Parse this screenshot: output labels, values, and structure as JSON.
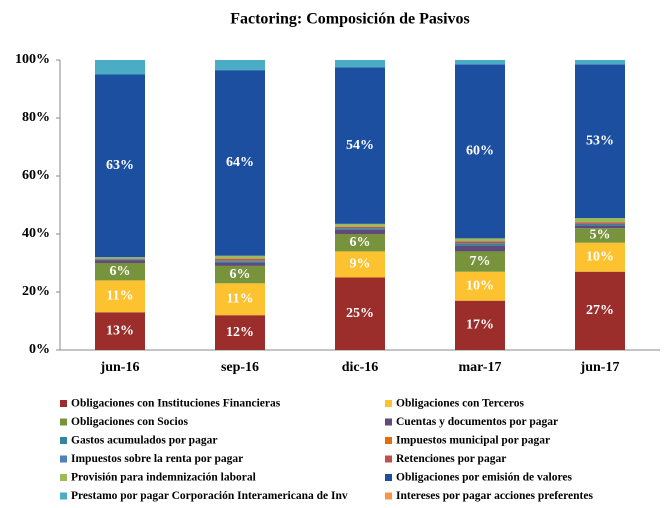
{
  "chart_data": {
    "type": "stacked_bar",
    "title": "Factoring: Composición de Pasivos",
    "categories": [
      "jun-16",
      "sep-16",
      "dic-16",
      "mar-17",
      "jun-17"
    ],
    "ylim": [
      0,
      100
    ],
    "yticks": [
      {
        "value": 0,
        "label": "0%"
      },
      {
        "value": 20,
        "label": "20%"
      },
      {
        "value": 40,
        "label": "40%"
      },
      {
        "value": 60,
        "label": "60%"
      },
      {
        "value": 80,
        "label": "80%"
      },
      {
        "value": 100,
        "label": "100%"
      }
    ],
    "grid": false,
    "legend": "bottom",
    "series": [
      {
        "name": "Obligaciones con Instituciones Financieras",
        "color": "#9b2d2a",
        "values": [
          13,
          12,
          25,
          17,
          27
        ],
        "value_labels": [
          "13%",
          "12%",
          "25%",
          "17%",
          "27%"
        ]
      },
      {
        "name": "Obligaciones con Terceros",
        "color": "#fcc230",
        "values": [
          11,
          11,
          9,
          10,
          10
        ],
        "value_labels": [
          "11%",
          "11%",
          "9%",
          "10%",
          "10%"
        ]
      },
      {
        "name": "Obligaciones con Socios",
        "color": "#77933c",
        "values": [
          6,
          6,
          6,
          7,
          5
        ],
        "value_labels": [
          "6%",
          "6%",
          "6%",
          "7%",
          "5%"
        ]
      },
      {
        "name": "Cuentas y documentos por pagar",
        "color": "#604a7b",
        "values": [
          1,
          1,
          1.5,
          2,
          1
        ]
      },
      {
        "name": "Gastos acumulados por pagar",
        "color": "#31859c",
        "values": [
          0.3,
          0.5,
          0.5,
          0.8,
          0.5
        ]
      },
      {
        "name": "Impuestos municipal por pagar",
        "color": "#e46c0a",
        "values": [
          0,
          0.2,
          0,
          0,
          0
        ]
      },
      {
        "name": "Impuestos sobre la renta por pagar",
        "color": "#4f81bd",
        "values": [
          0,
          0.3,
          0,
          0,
          0
        ]
      },
      {
        "name": "Retenciones por pagar",
        "color": "#c0504d",
        "values": [
          0.2,
          0.5,
          0.5,
          0.7,
          0.5
        ]
      },
      {
        "name": "Provisión para indemnización laboral",
        "color": "#9bbb59",
        "values": [
          0.5,
          1,
          1,
          1,
          1.5
        ]
      },
      {
        "name": "Obligaciones por emisión de valores",
        "color": "#1c4fa0",
        "values": [
          63,
          64,
          54,
          60,
          53
        ],
        "value_labels": [
          "63%",
          "64%",
          "54%",
          "60%",
          "53%"
        ]
      },
      {
        "name": "Prestamo por pagar Corporación Interamericana de Inv",
        "color": "#4bacc6",
        "values": [
          5,
          3.5,
          2.5,
          1.5,
          1.5
        ]
      },
      {
        "name": "Intereses por pagar acciones preferentes",
        "color": "#f79646",
        "values": [
          0,
          0,
          0,
          0,
          0
        ]
      }
    ]
  }
}
